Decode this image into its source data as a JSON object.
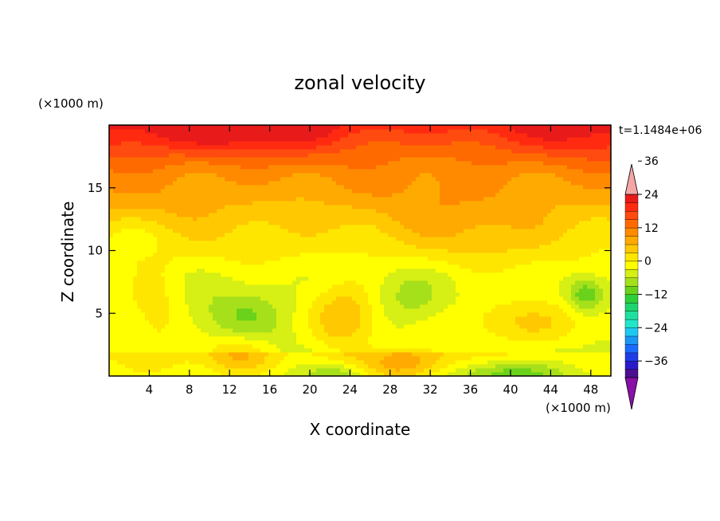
{
  "chart_data": {
    "type": "heatmap",
    "title": "zonal velocity",
    "xlabel": "X coordinate",
    "ylabel": "Z coordinate",
    "x_unit": "(×1000 m)",
    "y_unit": "(×1000 m)",
    "time_label": "t=1.1484e+06",
    "xlim": [
      0,
      50
    ],
    "ylim": [
      0,
      20
    ],
    "x_ticks": [
      4,
      8,
      12,
      16,
      20,
      24,
      28,
      32,
      36,
      40,
      44,
      48
    ],
    "y_ticks": [
      5,
      10,
      15
    ],
    "colorbar": {
      "levels": [
        -42,
        -39,
        -36,
        -33,
        -30,
        -27,
        -24,
        -21,
        -18,
        -15,
        -12,
        -9,
        -6,
        -3,
        0,
        3,
        6,
        9,
        12,
        15,
        18,
        21,
        24,
        27,
        30,
        33,
        36,
        39,
        42
      ],
      "labels": [
        36,
        24,
        12,
        0,
        -12,
        -24,
        -36
      ],
      "colors": [
        "#4d0f8f",
        "#2b1acc",
        "#1f3ce6",
        "#1a6bff",
        "#1a96f5",
        "#1ec8f0",
        "#22e6c8",
        "#1fe0a0",
        "#1ed46e",
        "#2ccf37",
        "#6ad21a",
        "#a6e01a",
        "#d6ef14",
        "#ffff00",
        "#ffe600",
        "#ffc800",
        "#ffaa00",
        "#ff8a00",
        "#ff6a00",
        "#ff4a10",
        "#ff2a10",
        "#e81a1a"
      ],
      "under_color": "#8a10a8",
      "over_color": "#f4a6a6"
    },
    "features": [
      {
        "x": 23.5,
        "z": 4.5,
        "sx": 2.3,
        "sz": 1.8,
        "amp": 9
      },
      {
        "x": 13.0,
        "z": 1.8,
        "sx": 2.6,
        "sz": 1.2,
        "amp": 8
      },
      {
        "x": 29.5,
        "z": 0.8,
        "sx": 3.0,
        "sz": 1.0,
        "amp": 9
      },
      {
        "x": 4.5,
        "z": 5.5,
        "sx": 2.2,
        "sz": 3.0,
        "amp": 5
      },
      {
        "x": 41.0,
        "z": 4.2,
        "sx": 5.5,
        "sz": 1.4,
        "amp": 7
      },
      {
        "x": 47.5,
        "z": 6.5,
        "sx": 1.4,
        "sz": 1.0,
        "amp": -10
      },
      {
        "x": 39.0,
        "z": 0.2,
        "sx": 4.0,
        "sz": 0.7,
        "amp": -8
      },
      {
        "x": 23.0,
        "z": 0.1,
        "sx": 2.0,
        "sz": 0.6,
        "amp": -6
      },
      {
        "x": 13.5,
        "z": 5.0,
        "sx": 3.0,
        "sz": 1.6,
        "amp": -5
      },
      {
        "x": 30.0,
        "z": 6.0,
        "sx": 2.5,
        "sz": 1.5,
        "amp": -4
      },
      {
        "x": 8.0,
        "z": 19.5,
        "sx": 7.0,
        "sz": 1.2,
        "amp": 4
      },
      {
        "x": 15.0,
        "z": 19.5,
        "sx": 5.0,
        "sz": 1.2,
        "amp": 4
      },
      {
        "x": 47.0,
        "z": 19.3,
        "sx": 5.0,
        "sz": 1.2,
        "amp": 3
      },
      {
        "x": 28.0,
        "z": 18.0,
        "sx": 6.0,
        "sz": 1.6,
        "amp": -2
      },
      {
        "x": 35.0,
        "z": 11.5,
        "sx": 6.0,
        "sz": 2.5,
        "amp": 3
      },
      {
        "x": 3.0,
        "z": 11.0,
        "sx": 3.0,
        "sz": 1.2,
        "amp": -3
      }
    ]
  }
}
